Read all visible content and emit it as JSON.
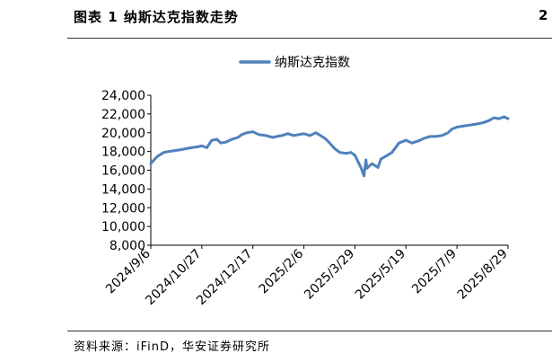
{
  "figure_title": "图表 1 纳斯达克指数走势",
  "corner_char": "2",
  "source": "资料来源：iFinD，华安证券研究所",
  "chart_data": {
    "type": "line",
    "title": "",
    "xlabel": "",
    "ylabel": "",
    "legend": {
      "placement": "top-center"
    },
    "grid": false,
    "ylim": [
      8000,
      24000
    ],
    "y_ticks": [
      8000,
      10000,
      12000,
      14000,
      16000,
      18000,
      20000,
      22000,
      24000
    ],
    "y_tick_labels": [
      "8,000",
      "10,000",
      "12,000",
      "14,000",
      "16,000",
      "18,000",
      "20,000",
      "22,000",
      "24,000"
    ],
    "x_tick_labels": [
      "2024/9/6",
      "2024/10/27",
      "2024/12/17",
      "2025/2/6",
      "2025/3/29",
      "2025/5/19",
      "2025/7/9",
      "2025/8/29"
    ],
    "series": [
      {
        "name": "纳斯达克指数",
        "color": "#4f81bd",
        "x": [
          "2024/9/6",
          "2024/9/10",
          "2024/9/13",
          "2024/9/19",
          "2024/9/24",
          "2024/9/30",
          "2024/10/7",
          "2024/10/11",
          "2024/10/17",
          "2024/10/23",
          "2024/10/27",
          "2024/11/1",
          "2024/11/6",
          "2024/11/11",
          "2024/11/15",
          "2024/11/20",
          "2024/11/26",
          "2024/12/2",
          "2024/12/6",
          "2024/12/11",
          "2024/12/17",
          "2024/12/23",
          "2024/12/30",
          "2025/1/6",
          "2025/1/10",
          "2025/1/15",
          "2025/1/21",
          "2025/1/27",
          "2025/2/1",
          "2025/2/6",
          "2025/2/12",
          "2025/2/18",
          "2025/2/21",
          "2025/2/27",
          "2025/3/3",
          "2025/3/7",
          "2025/3/10",
          "2025/3/14",
          "2025/3/20",
          "2025/3/25",
          "2025/3/29",
          "2025/4/3",
          "2025/4/4",
          "2025/4/7",
          "2025/4/9",
          "2025/4/10",
          "2025/4/15",
          "2025/4/21",
          "2025/4/24",
          "2025/4/29",
          "2025/5/5",
          "2025/5/12",
          "2025/5/19",
          "2025/5/25",
          "2025/5/31",
          "2025/6/6",
          "2025/6/12",
          "2025/6/18",
          "2025/6/24",
          "2025/6/30",
          "2025/7/4",
          "2025/7/9",
          "2025/7/15",
          "2025/7/21",
          "2025/7/27",
          "2025/8/1",
          "2025/8/5",
          "2025/8/10",
          "2025/8/15",
          "2025/8/20",
          "2025/8/25",
          "2025/8/29"
        ],
        "values": [
          16700,
          17200,
          17500,
          17900,
          18000,
          18100,
          18200,
          18300,
          18400,
          18500,
          18600,
          18400,
          19200,
          19300,
          18900,
          19000,
          19300,
          19500,
          19800,
          20000,
          20100,
          19800,
          19700,
          19500,
          19600,
          19700,
          19900,
          19700,
          19800,
          19900,
          19700,
          20000,
          19800,
          19400,
          19000,
          18500,
          18200,
          17900,
          17800,
          17900,
          17600,
          16500,
          16300,
          15400,
          17100,
          16200,
          16700,
          16300,
          17200,
          17500,
          17900,
          18900,
          19200,
          18900,
          19100,
          19400,
          19600,
          19600,
          19700,
          20000,
          20400,
          20600,
          20700,
          20800,
          20900,
          21000,
          21100,
          21300,
          21600,
          21500,
          21700,
          21500
        ]
      }
    ]
  }
}
